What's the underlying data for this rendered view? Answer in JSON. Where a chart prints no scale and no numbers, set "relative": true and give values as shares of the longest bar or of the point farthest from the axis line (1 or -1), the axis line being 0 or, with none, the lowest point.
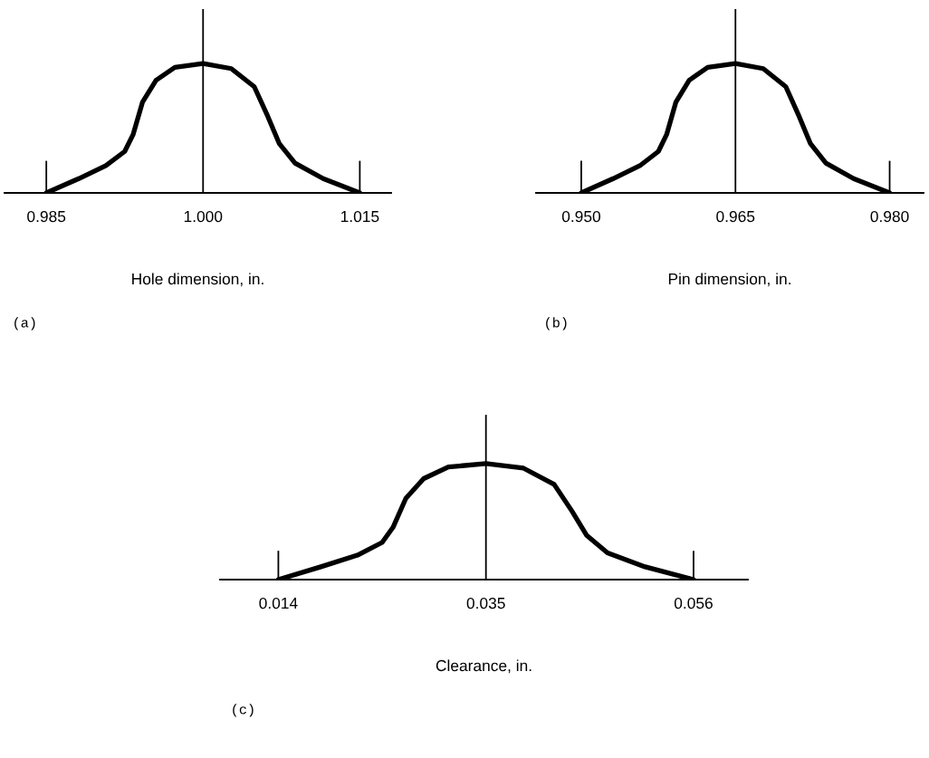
{
  "chart_data": [
    {
      "type": "line",
      "relative": true,
      "xlabel": "Hole dimension, in.",
      "annotations": [
        "(a)"
      ],
      "xlim": [
        0.981,
        1.018
      ],
      "xticks": [
        {
          "value": 0.985,
          "label": "0.985"
        },
        {
          "value": 1.0,
          "label": "1.000"
        },
        {
          "value": 1.015,
          "label": "1.015"
        }
      ],
      "tick_labels": "x",
      "ref_lines": [
        {
          "axis": "x",
          "value": 0.985,
          "color": "#000000"
        },
        {
          "axis": "x",
          "value": 1.0,
          "color": "#000000"
        },
        {
          "axis": "x",
          "value": 1.015,
          "color": "#000000"
        }
      ],
      "series": [
        {
          "color": "#000000",
          "x": [
            0.985,
            0.9881,
            0.9907,
            0.9925,
            0.9933,
            0.9942,
            0.9955,
            0.9973,
            1.0,
            1.0027,
            1.0049,
            1.0062,
            1.0073,
            1.0088,
            1.0115,
            1.015
          ],
          "values": [
            0,
            0.11,
            0.21,
            0.32,
            0.45,
            0.7,
            0.87,
            0.97,
            1,
            0.96,
            0.82,
            0.59,
            0.38,
            0.23,
            0.11,
            0
          ]
        }
      ]
    },
    {
      "type": "line",
      "relative": true,
      "xlabel": "Pin dimension, in.",
      "annotations": [
        "(b)"
      ],
      "xlim": [
        0.9456,
        0.9833
      ],
      "xticks": [
        {
          "value": 0.95,
          "label": "0.950"
        },
        {
          "value": 0.965,
          "label": "0.965"
        },
        {
          "value": 0.98,
          "label": "0.980"
        }
      ],
      "tick_labels": "x",
      "ref_lines": [
        {
          "axis": "x",
          "value": 0.95,
          "color": "#000000"
        },
        {
          "axis": "x",
          "value": 0.965,
          "color": "#000000"
        },
        {
          "axis": "x",
          "value": 0.98,
          "color": "#000000"
        }
      ],
      "series": [
        {
          "color": "#000000",
          "x": [
            0.95,
            0.9531,
            0.9557,
            0.9575,
            0.9583,
            0.9592,
            0.9605,
            0.9623,
            0.965,
            0.9677,
            0.9699,
            0.9712,
            0.9723,
            0.9738,
            0.9765,
            0.98
          ],
          "values": [
            0,
            0.11,
            0.21,
            0.32,
            0.45,
            0.7,
            0.87,
            0.97,
            1,
            0.96,
            0.82,
            0.59,
            0.38,
            0.23,
            0.11,
            0
          ]
        }
      ]
    },
    {
      "type": "line",
      "relative": true,
      "xlabel": "Clearance, in.",
      "annotations": [
        "(c)"
      ],
      "xlim": [
        0.0081,
        0.0615
      ],
      "xticks": [
        0.014,
        0.035,
        0.056
      ],
      "tick_labels": "x",
      "ref_lines": [
        {
          "axis": "x",
          "value": 0.014,
          "color": "#000000"
        },
        {
          "axis": "x",
          "value": 0.035,
          "color": "#000000"
        },
        {
          "axis": "x",
          "value": 0.056,
          "color": "#000000"
        }
      ],
      "series": [
        {
          "color": "#000000",
          "x": [
            0.014,
            0.0183,
            0.022,
            0.0245,
            0.0256,
            0.0269,
            0.0287,
            0.0312,
            0.035,
            0.0388,
            0.0419,
            0.0437,
            0.0452,
            0.0473,
            0.0511,
            0.056
          ],
          "values": [
            0,
            0.11,
            0.21,
            0.32,
            0.45,
            0.7,
            0.87,
            0.97,
            1,
            0.96,
            0.82,
            0.59,
            0.38,
            0.23,
            0.11,
            0
          ]
        }
      ]
    }
  ]
}
